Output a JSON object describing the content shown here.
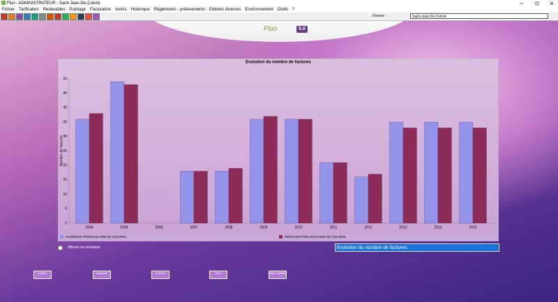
{
  "window": {
    "title": "Fluo - ADMINISTRATEUR - Saint-Jean-De-Coloris"
  },
  "menu": [
    "Fichier",
    "Tarification",
    "Redevables",
    "Pointage",
    "Facturation",
    "Avoirs",
    "Historique",
    "Règlements - prélèvements",
    "Editions diverses",
    "Environnement",
    "Outils",
    "?"
  ],
  "dossier": {
    "label": "Dossier :",
    "value": "Saint-Jean-De-Coloris"
  },
  "logo": {
    "name": "Fluo",
    "version": "5.0"
  },
  "chart_data": {
    "type": "bar",
    "title": "Evolution du nombre de factures",
    "y_label": "Nombre de factures",
    "categories": [
      "2004",
      "2005",
      "2006",
      "2007",
      "2008",
      "2009",
      "2010",
      "2011",
      "2012",
      "2013",
      "2014",
      "2015"
    ],
    "series": [
      {
        "name": "GARDERIE PERISCOLAIRE DE COLORIS",
        "color": "#9494ea",
        "values": [
          36,
          49,
          0,
          18,
          18,
          36,
          36,
          21,
          16,
          35,
          35,
          35
        ]
      },
      {
        "name": "RESTAURATION SCOLAIRE DE COLORIS",
        "color": "#8c2a58",
        "values": [
          38,
          48,
          0,
          18,
          19,
          37,
          36,
          21,
          17,
          33,
          33,
          33
        ]
      }
    ],
    "ylim": [
      0,
      50
    ],
    "yticks": [
      0,
      5,
      10,
      15,
      20,
      25,
      30,
      35,
      40,
      45,
      50
    ]
  },
  "options": {
    "checkbox": "Afficher les montants",
    "select": "Evolution du nombre de factures"
  },
  "buttons": [
    "Quitter",
    "Imprimer",
    "Courrier",
    "Infos",
    "Bord. détaillé"
  ]
}
